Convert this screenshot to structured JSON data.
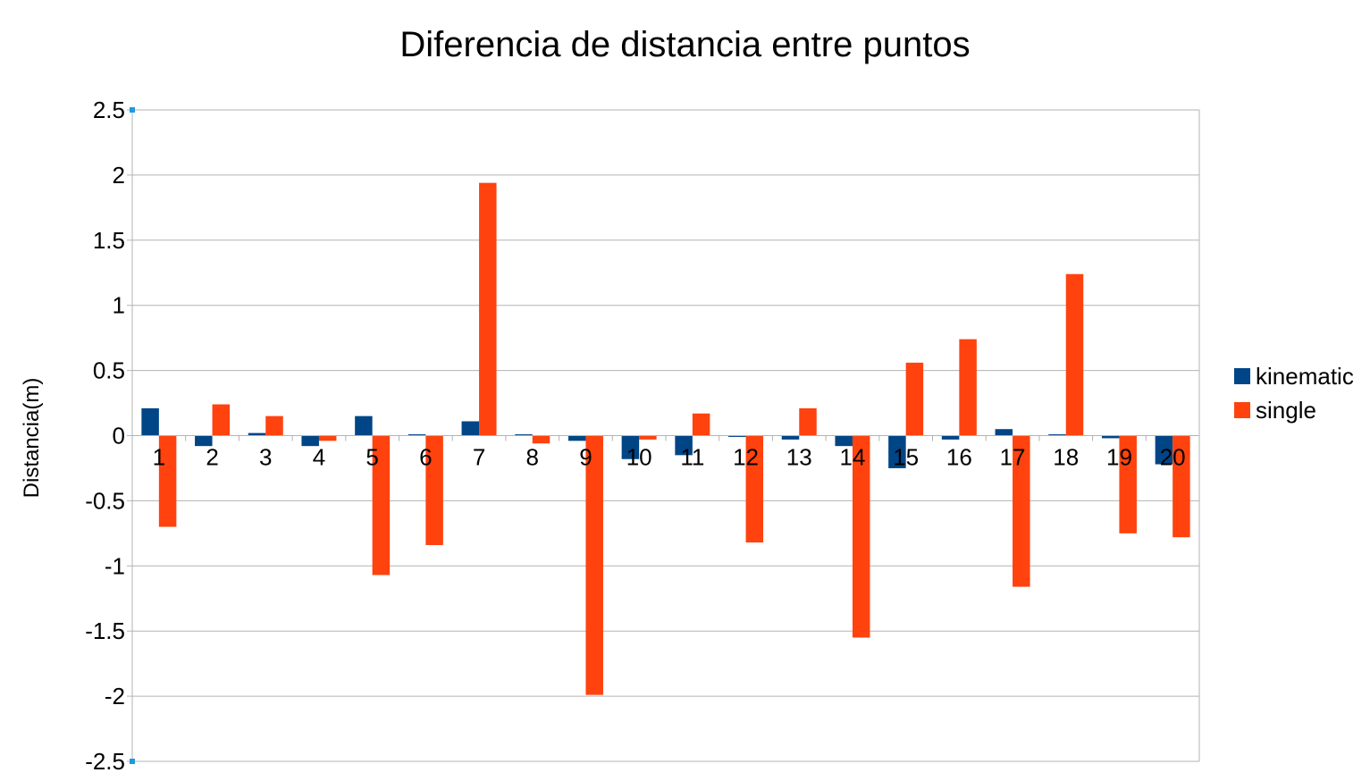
{
  "chart_data": {
    "type": "bar",
    "title": "Diferencia de distancia entre puntos",
    "xlabel": "",
    "ylabel": "Distancia(m)",
    "ylim": [
      -2.5,
      2.5
    ],
    "y_ticks": [
      2.5,
      2,
      1.5,
      1,
      0.5,
      0,
      -0.5,
      -1,
      -1.5,
      -2,
      -2.5
    ],
    "y_tick_labels": [
      "2.5",
      "2",
      "1.5",
      "1",
      "0.5",
      "0",
      "-0.5",
      "-1",
      "-1.5",
      "-2",
      "-2.5"
    ],
    "categories": [
      "1",
      "2",
      "3",
      "4",
      "5",
      "6",
      "7",
      "8",
      "9",
      "10",
      "11",
      "12",
      "13",
      "14",
      "15",
      "16",
      "17",
      "18",
      "19",
      "20"
    ],
    "series": [
      {
        "name": "kinematic",
        "color": "#004586",
        "values": [
          0.21,
          -0.08,
          0.02,
          -0.08,
          0.15,
          0.01,
          0.11,
          0.01,
          -0.04,
          -0.18,
          -0.15,
          -0.01,
          -0.03,
          -0.08,
          -0.25,
          -0.03,
          0.05,
          0.01,
          -0.02,
          -0.22
        ]
      },
      {
        "name": "single",
        "color": "#FF420E",
        "values": [
          -0.7,
          0.24,
          0.15,
          -0.04,
          -1.07,
          -0.84,
          1.94,
          -0.06,
          -1.99,
          -0.03,
          0.17,
          -0.82,
          0.21,
          -1.55,
          0.56,
          0.74,
          -1.16,
          1.24,
          -0.75,
          -0.78
        ]
      }
    ],
    "grid": true,
    "legend_position": "right",
    "gridline_color": "#b3b3b3",
    "axis_color": "#b3b3b3",
    "text_color": "#000000"
  }
}
